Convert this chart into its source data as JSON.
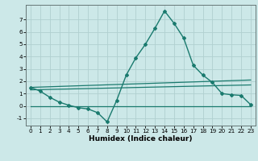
{
  "title": "",
  "xlabel": "Humidex (Indice chaleur)",
  "ylabel": "",
  "bg_color": "#cce8e8",
  "grid_color": "#b0d0d0",
  "line_color": "#1a7a6e",
  "xlim": [
    -0.5,
    23.5
  ],
  "ylim": [
    -1.6,
    8.2
  ],
  "xticks": [
    0,
    1,
    2,
    3,
    4,
    5,
    6,
    7,
    8,
    9,
    10,
    11,
    12,
    13,
    14,
    15,
    16,
    17,
    18,
    19,
    20,
    21,
    22,
    23
  ],
  "yticks": [
    -1,
    0,
    1,
    2,
    3,
    4,
    5,
    6,
    7
  ],
  "main_series": {
    "x": [
      0,
      1,
      2,
      3,
      4,
      5,
      6,
      7,
      8,
      9,
      10,
      11,
      12,
      13,
      14,
      15,
      16,
      17,
      18,
      19,
      20,
      21,
      22,
      23
    ],
    "y": [
      1.5,
      1.2,
      0.7,
      0.3,
      0.05,
      -0.15,
      -0.25,
      -0.55,
      -1.3,
      0.45,
      2.5,
      3.9,
      5.0,
      6.3,
      7.7,
      6.7,
      5.5,
      3.3,
      2.5,
      1.9,
      1.0,
      0.9,
      0.85,
      0.1
    ],
    "marker": "D",
    "markersize": 2.0,
    "linewidth": 1.0
  },
  "envelope_lines": [
    {
      "x": [
        0,
        23
      ],
      "y": [
        1.5,
        2.1
      ],
      "linewidth": 0.9
    },
    {
      "x": [
        0,
        23
      ],
      "y": [
        1.3,
        1.7
      ],
      "linewidth": 0.9
    },
    {
      "x": [
        0,
        23
      ],
      "y": [
        0.0,
        0.0
      ],
      "linewidth": 0.9
    }
  ],
  "xlabel_fontsize": 6.5,
  "tick_fontsize": 5.2
}
